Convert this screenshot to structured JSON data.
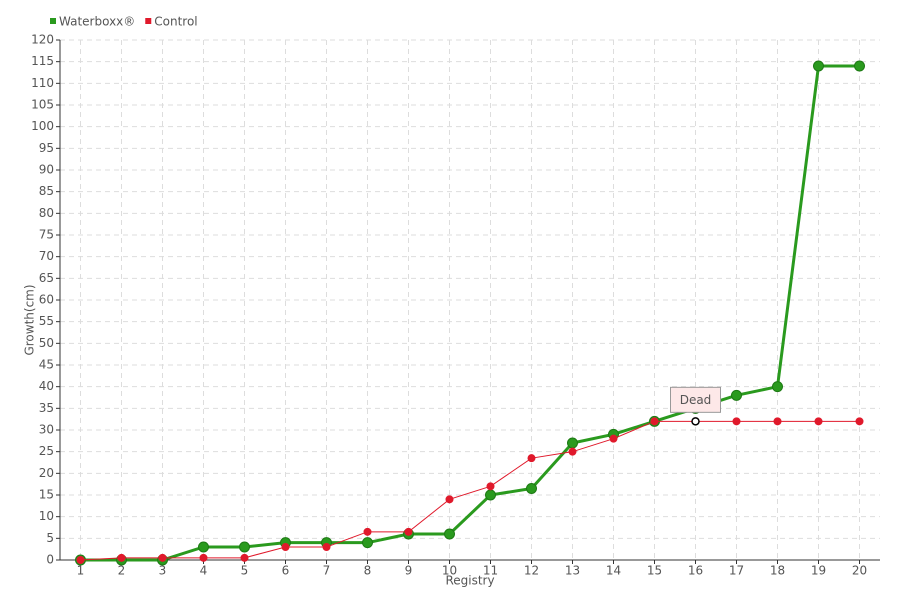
{
  "chart_data": {
    "type": "line",
    "x_label": "Registry",
    "y_label": "Growth(cm)",
    "x": [
      1,
      2,
      3,
      4,
      5,
      6,
      7,
      8,
      9,
      10,
      11,
      12,
      13,
      14,
      15,
      16,
      17,
      18,
      19,
      20
    ],
    "xlim": [
      0.5,
      20.5
    ],
    "xticks": [
      1,
      2,
      3,
      4,
      5,
      6,
      7,
      8,
      9,
      10,
      11,
      12,
      13,
      14,
      15,
      16,
      17,
      18,
      19,
      20
    ],
    "ylim": [
      0,
      120
    ],
    "yticks": [
      0,
      5,
      10,
      15,
      20,
      25,
      30,
      35,
      40,
      45,
      50,
      55,
      60,
      65,
      70,
      75,
      80,
      85,
      90,
      95,
      100,
      105,
      110,
      115,
      120
    ],
    "grid": true,
    "legend": "top-left",
    "series": [
      {
        "name": "Waterboxx®",
        "color": "#2a9a1e",
        "values": [
          0,
          0,
          0,
          3,
          3,
          4,
          4,
          4,
          6,
          6,
          15,
          16.5,
          27,
          29,
          32,
          35,
          38,
          40,
          114,
          114
        ]
      },
      {
        "name": "Control",
        "color": "#e0192b",
        "values": [
          0,
          0.5,
          0.5,
          0.5,
          0.5,
          3,
          3,
          6.5,
          6.5,
          14,
          17,
          23.5,
          25,
          28,
          32,
          32,
          32,
          32,
          32,
          32
        ]
      }
    ],
    "annotations": [
      {
        "text": "Dead",
        "x": 16,
        "y": 32
      }
    ]
  }
}
